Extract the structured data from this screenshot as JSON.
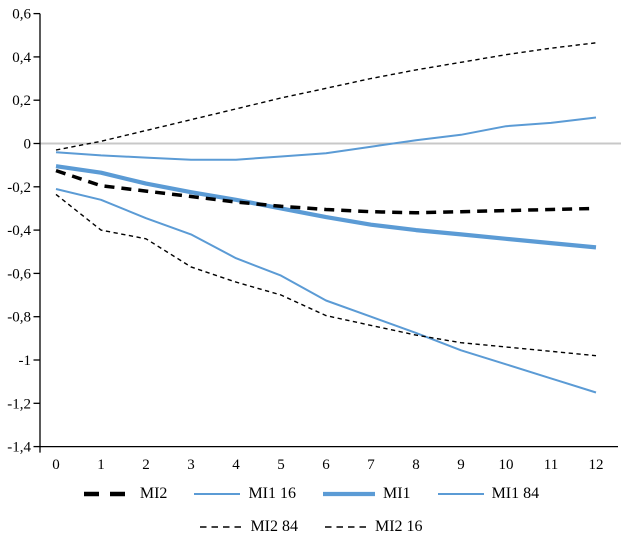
{
  "chart_data": {
    "type": "line",
    "title": "",
    "xlabel": "",
    "ylabel": "",
    "x": [
      0,
      1,
      2,
      3,
      4,
      5,
      6,
      7,
      8,
      9,
      10,
      11,
      12
    ],
    "x_tick_labels": [
      "0",
      "1",
      "2",
      "3",
      "4",
      "5",
      "6",
      "7",
      "8",
      "9",
      "10",
      "11",
      "12"
    ],
    "y_tick_labels": [
      "0,6",
      "0,4",
      "0,2",
      "0",
      "-0,2",
      "-0,4",
      "-0,6",
      "-0,8",
      "-1",
      "-1,2",
      "-1,4"
    ],
    "ylim": [
      -1.4,
      0.6
    ],
    "ytick_step": 0.2,
    "xlim": [
      0,
      12
    ],
    "grid": "horizontal-zero-line-only",
    "legend_position": "bottom",
    "decimal_separator": ",",
    "colors": {
      "series_blue": "#5B9BD5",
      "series_black": "#000000",
      "zero_line": "#C8C8C8",
      "axis": "#000000",
      "background": "#FFFFFF"
    },
    "series": [
      {
        "name": "MI2",
        "color": "#000000",
        "style": "dashed-thick",
        "width": 3.5,
        "dash": "10 7",
        "legend_dash": "15 11",
        "values": [
          -0.125,
          -0.195,
          -0.22,
          -0.245,
          -0.27,
          -0.29,
          -0.305,
          -0.315,
          -0.32,
          -0.315,
          -0.31,
          -0.305,
          -0.3
        ]
      },
      {
        "name": "MI1 16",
        "color": "#5B9BD5",
        "style": "solid-thin",
        "width": 2,
        "dash": null,
        "legend_dash": null,
        "values": [
          -0.21,
          -0.26,
          -0.345,
          -0.42,
          -0.53,
          -0.61,
          -0.725,
          -0.8,
          -0.875,
          -0.955,
          -1.02,
          -1.085,
          -1.15
        ]
      },
      {
        "name": "MI1",
        "color": "#5B9BD5",
        "style": "solid-thick",
        "width": 4.2,
        "dash": null,
        "legend_dash": null,
        "values": [
          -0.105,
          -0.135,
          -0.185,
          -0.225,
          -0.26,
          -0.3,
          -0.34,
          -0.375,
          -0.4,
          -0.42,
          -0.44,
          -0.46,
          -0.48
        ]
      },
      {
        "name": "MI1 84",
        "color": "#5B9BD5",
        "style": "solid-thin",
        "width": 2,
        "dash": null,
        "legend_dash": null,
        "values": [
          -0.04,
          -0.055,
          -0.065,
          -0.075,
          -0.075,
          -0.06,
          -0.045,
          -0.015,
          0.015,
          0.04,
          0.08,
          0.095,
          0.12
        ]
      },
      {
        "name": "MI2 84",
        "color": "#000000",
        "style": "dashed-thin",
        "width": 1.4,
        "dash": "4.3 3.5",
        "legend_dash": "6.5 5",
        "values": [
          -0.03,
          0.01,
          0.06,
          0.11,
          0.16,
          0.21,
          0.255,
          0.3,
          0.34,
          0.375,
          0.41,
          0.44,
          0.465
        ]
      },
      {
        "name": "MI2 16",
        "color": "#000000",
        "style": "dashed-thin",
        "width": 1.4,
        "dash": "4.3 3.5",
        "legend_dash": "6.5 5",
        "values": [
          -0.235,
          -0.4,
          -0.44,
          -0.57,
          -0.64,
          -0.7,
          -0.795,
          -0.84,
          -0.885,
          -0.92,
          -0.94,
          -0.96,
          -0.98
        ]
      }
    ],
    "legend_rows": [
      [
        0,
        1,
        2,
        3
      ],
      [
        4,
        5
      ]
    ],
    "draw_order": [
      1,
      3,
      2,
      4,
      5,
      0
    ]
  }
}
